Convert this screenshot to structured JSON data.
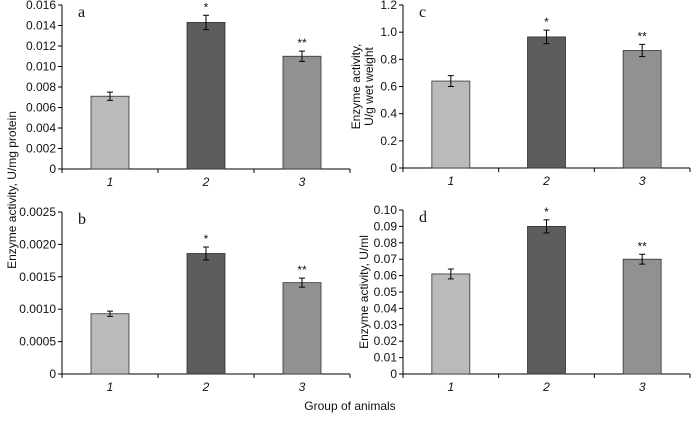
{
  "xlabel": "Group of animals",
  "shared_ylabel_ab": "Enzyme activity, U/mg protein",
  "colors": [
    "#b9bbb8",
    "#5b5e5b",
    "#8f928f"
  ],
  "chart_data": [
    {
      "type": "bar",
      "panel": "a",
      "categories": [
        "1",
        "2",
        "3"
      ],
      "values": [
        0.0071,
        0.0143,
        0.011
      ],
      "errors": [
        0.0004,
        0.0007,
        0.0005
      ],
      "annotations": [
        "",
        "*",
        "**"
      ],
      "ylim": [
        0,
        0.016
      ],
      "yticks": [
        "0",
        "0.002",
        "0.004",
        "0.006",
        "0.008",
        "0.010",
        "0.012",
        "0.014",
        "0.016"
      ],
      "ylabel": "Enzyme activity, U/mg protein"
    },
    {
      "type": "bar",
      "panel": "c",
      "categories": [
        "1",
        "2",
        "3"
      ],
      "values": [
        0.64,
        0.965,
        0.865
      ],
      "errors": [
        0.04,
        0.05,
        0.045
      ],
      "annotations": [
        "",
        "*",
        "**"
      ],
      "ylim": [
        0,
        1.2
      ],
      "yticks": [
        "0",
        "0.2",
        "0.4",
        "0.6",
        "0.8",
        "1.0",
        "1.2"
      ],
      "ylabel": [
        "Enzyme activity,",
        "U/g wet weight"
      ]
    },
    {
      "type": "bar",
      "panel": "b",
      "categories": [
        "1",
        "2",
        "3"
      ],
      "values": [
        0.00093,
        0.00186,
        0.00141
      ],
      "errors": [
        4e-05,
        0.0001,
        7e-05
      ],
      "annotations": [
        "",
        "*",
        "**"
      ],
      "ylim": [
        0,
        0.0025
      ],
      "yticks": [
        "0",
        "0.0005",
        "0.0010",
        "0.0015",
        "0.0020",
        "0.0025"
      ],
      "ylabel": "Enzyme activity, U/mg protein"
    },
    {
      "type": "bar",
      "panel": "d",
      "categories": [
        "1",
        "2",
        "3"
      ],
      "values": [
        0.061,
        0.09,
        0.07
      ],
      "errors": [
        0.003,
        0.004,
        0.003
      ],
      "annotations": [
        "",
        "*",
        "**"
      ],
      "ylim": [
        0,
        0.1
      ],
      "yticks": [
        "0",
        "0.01",
        "0.02",
        "0.03",
        "0.04",
        "0.05",
        "0.06",
        "0.07",
        "0.08",
        "0.09",
        "0.10"
      ],
      "ylabel": "Enzyme activity, U/ml"
    }
  ]
}
